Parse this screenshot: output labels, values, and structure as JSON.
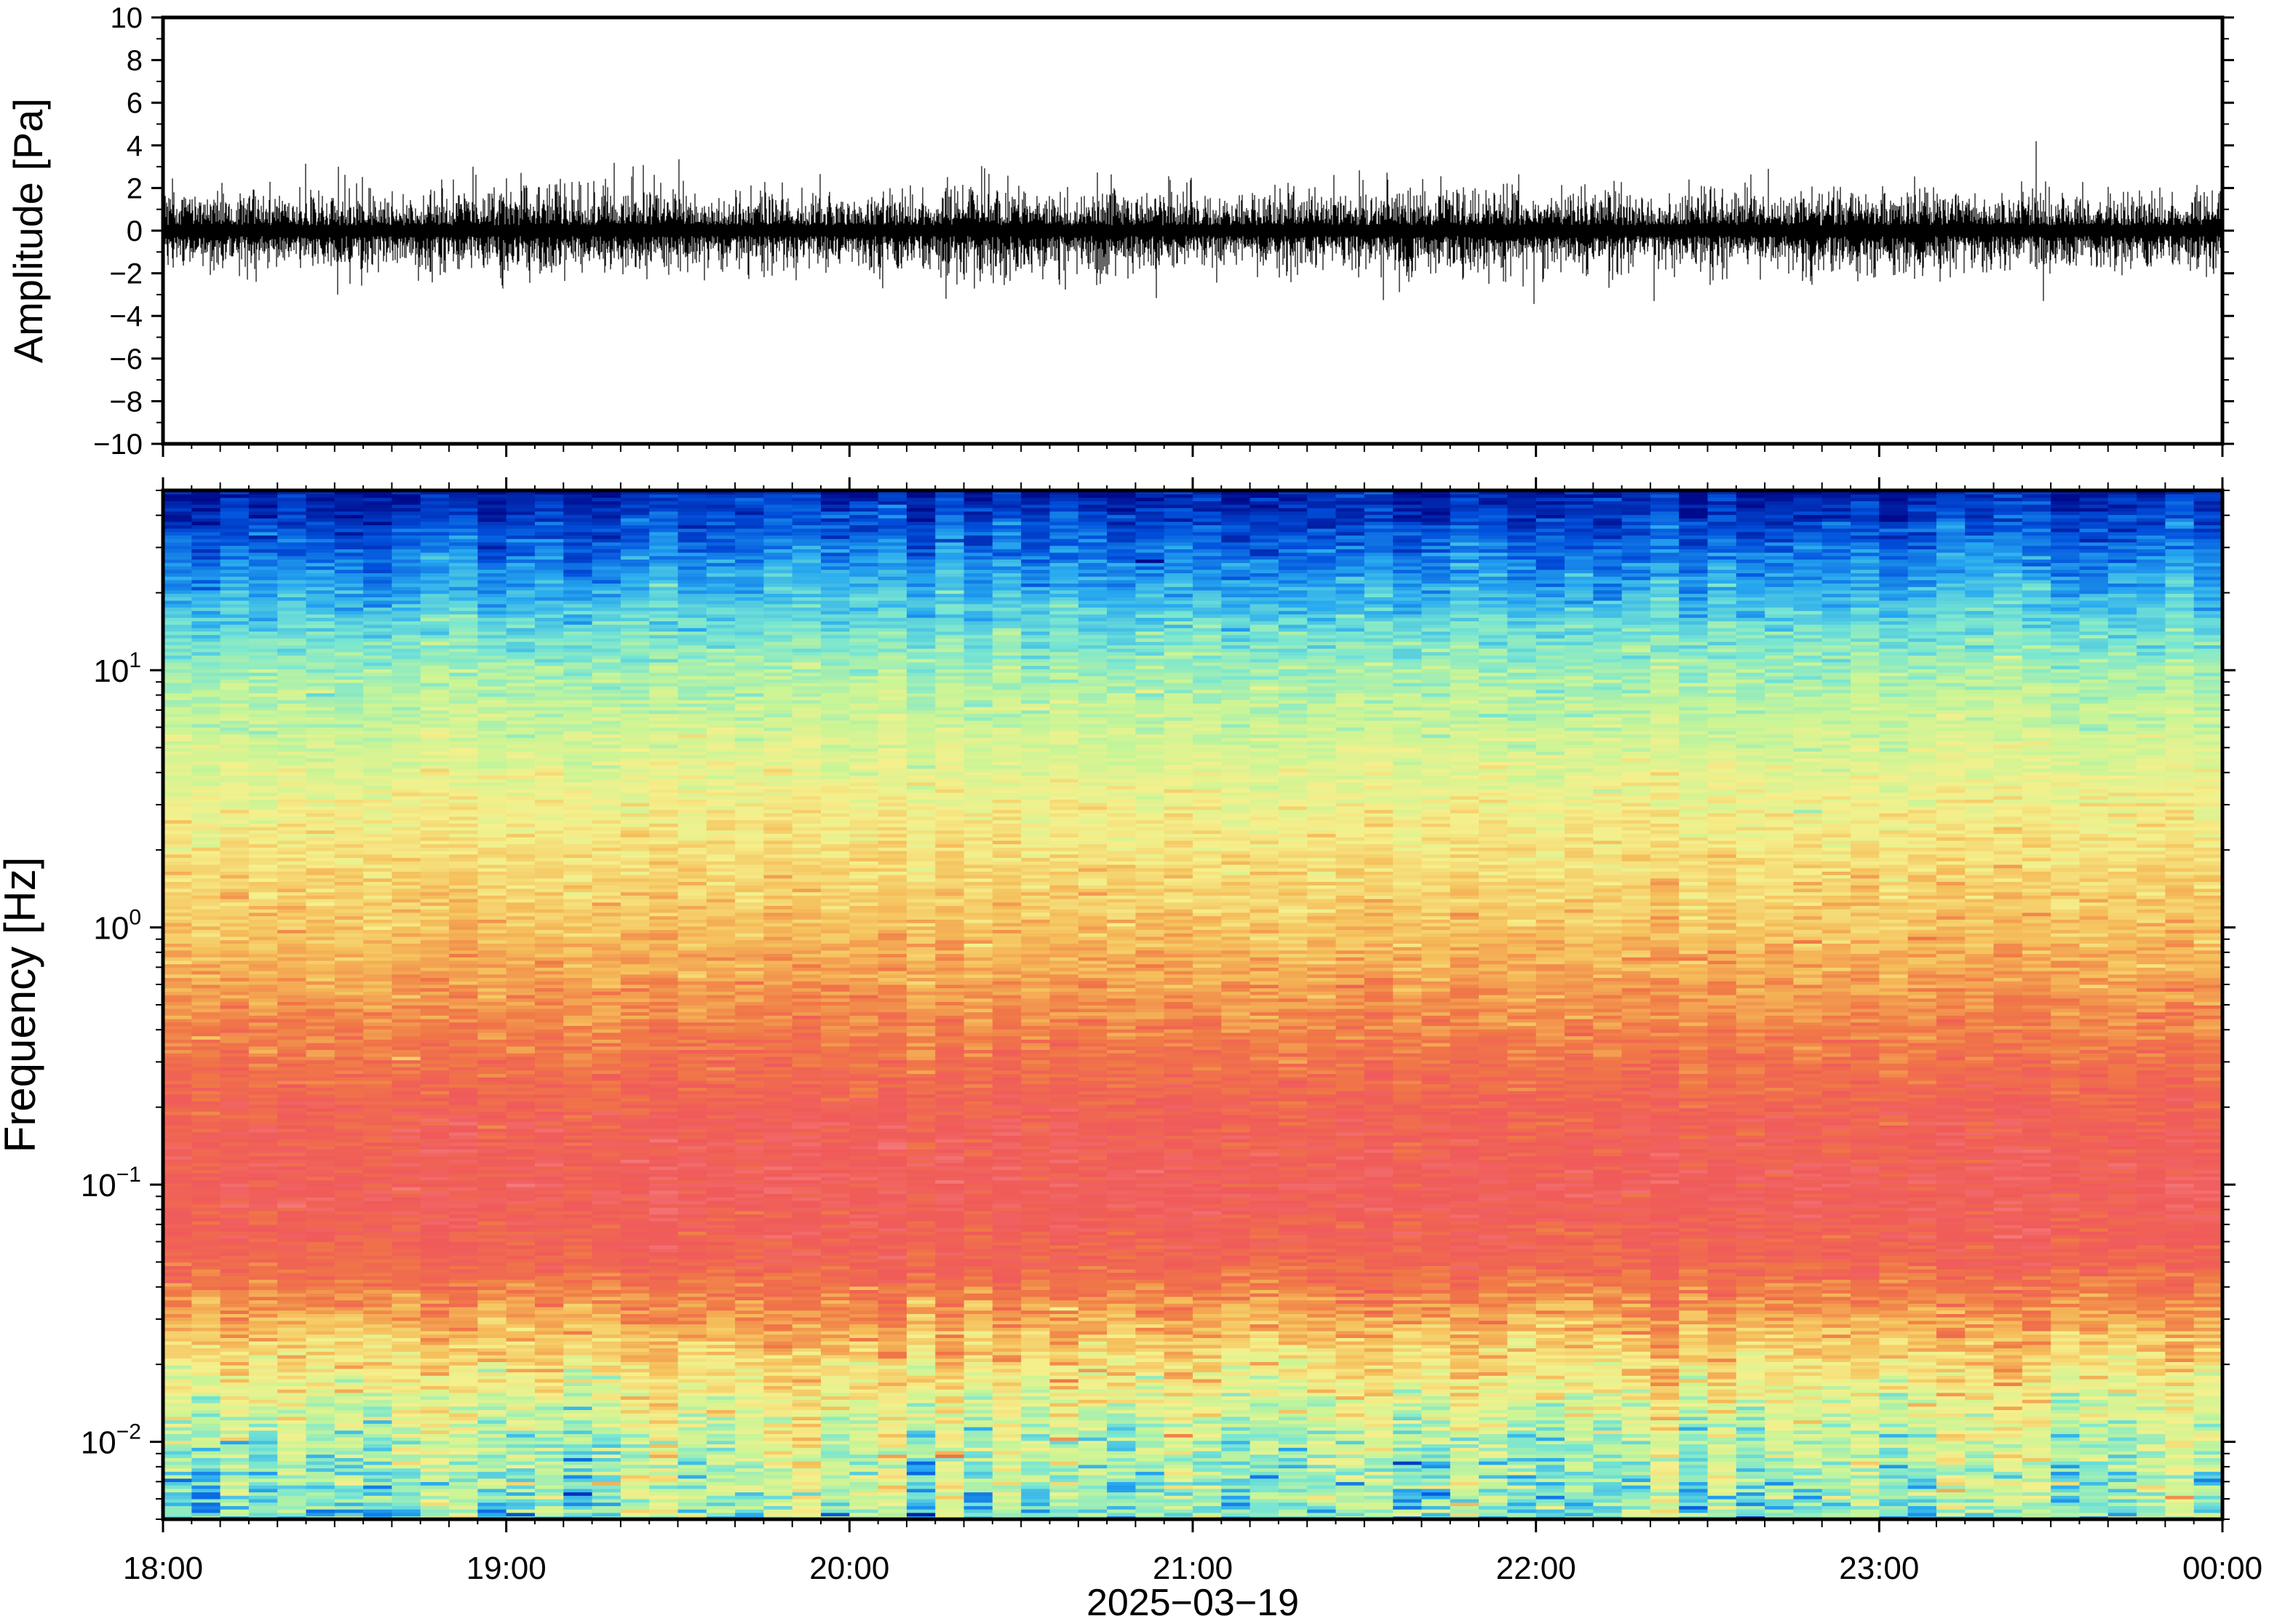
{
  "chart_data": [
    {
      "type": "line",
      "title": "",
      "ylabel": "Amplitude [Pa]",
      "xlabel": "",
      "ylim": [
        -10,
        10
      ],
      "yticks": [
        10,
        8,
        6,
        4,
        2,
        0,
        -2,
        -4,
        -6,
        -8,
        -10
      ],
      "ytick_labels": [
        "10",
        "8",
        "6",
        "4",
        "2",
        "0",
        "−2",
        "−4",
        "−6",
        "−8",
        "−10"
      ],
      "xlim": [
        "2025-03-19T18:00",
        "2025-03-20T00:00"
      ],
      "grid": false,
      "series": [
        {
          "description": "pressure waveform, noise centred on 0",
          "typical_envelope": [
            -1.5,
            1.5
          ],
          "peaks": [
            {
              "time": "2025-03-19T18:30",
              "value": 3.0
            },
            {
              "time": "2025-03-19T18:55",
              "value": 3.0
            },
            {
              "time": "2025-03-19T18:30",
              "value": -3.0
            },
            {
              "time": "2025-03-19T20:15",
              "value": -3.2
            },
            {
              "time": "2025-03-19T22:20",
              "value": -3.3
            },
            {
              "time": "2025-03-19T22:40",
              "value": 2.9
            },
            {
              "time": "2025-03-19T23:30",
              "value": -3.3
            }
          ]
        }
      ]
    },
    {
      "type": "heatmap",
      "title": "",
      "ylabel": "Frequency [Hz]",
      "xlabel": "2025−03−19",
      "y_scale": "log",
      "ylim": [
        0.005,
        50
      ],
      "yticks": [
        0.01,
        0.1,
        1,
        10
      ],
      "ytick_labels": [
        {
          "base": "10",
          "exp": "−2"
        },
        {
          "base": "10",
          "exp": "−1"
        },
        {
          "base": "10",
          "exp": "0"
        },
        {
          "base": "10",
          "exp": "1"
        }
      ],
      "xlim": [
        "2025-03-19T18:00",
        "2025-03-20T00:00"
      ],
      "xtick_labels": [
        "18:00",
        "19:00",
        "20:00",
        "21:00",
        "22:00",
        "23:00",
        "00:00"
      ],
      "grid": false,
      "colormap": "rainbow",
      "colormap_stops": [
        "#000a8c",
        "#0050dc",
        "#28aaf0",
        "#78e6d2",
        "#c8f596",
        "#f5f08c",
        "#f5be5a",
        "#f07846",
        "#f05a5a",
        "#f57878"
      ],
      "intensity_profile": [
        {
          "freq": 0.005,
          "level": 0.38
        },
        {
          "freq": 0.01,
          "level": 0.45
        },
        {
          "freq": 0.02,
          "level": 0.6
        },
        {
          "freq": 0.035,
          "level": 0.75
        },
        {
          "freq": 0.05,
          "level": 0.85
        },
        {
          "freq": 0.1,
          "level": 0.9
        },
        {
          "freq": 0.2,
          "level": 0.86
        },
        {
          "freq": 0.5,
          "level": 0.74
        },
        {
          "freq": 1,
          "level": 0.66
        },
        {
          "freq": 3,
          "level": 0.55
        },
        {
          "freq": 10,
          "level": 0.4
        },
        {
          "freq": 20,
          "level": 0.25
        },
        {
          "freq": 35,
          "level": 0.12
        },
        {
          "freq": 50,
          "level": 0.04
        }
      ]
    }
  ]
}
